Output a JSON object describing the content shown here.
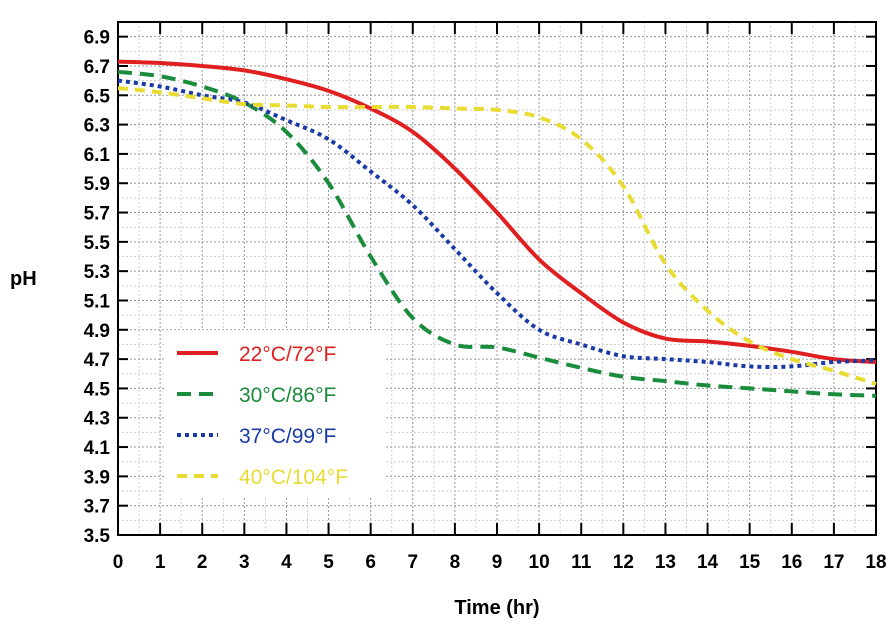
{
  "chart_data": {
    "type": "line",
    "xlabel": "Time (hr)",
    "ylabel": "pH",
    "xlim": [
      0,
      18
    ],
    "ylim": [
      3.5,
      7.0
    ],
    "x_ticks": [
      "0",
      "1",
      "2",
      "3",
      "4",
      "5",
      "6",
      "7",
      "8",
      "9",
      "10",
      "11",
      "12",
      "13",
      "14",
      "15",
      "16",
      "17",
      "18"
    ],
    "y_ticks": [
      "3.5",
      "3.7",
      "3.9",
      "4.1",
      "4.3",
      "4.5",
      "4.7",
      "4.9",
      "5.1",
      "5.3",
      "5.5",
      "5.7",
      "5.9",
      "6.1",
      "6.3",
      "6.5",
      "6.7",
      "6.9"
    ],
    "grid": true,
    "legend_position": "bottom-left",
    "x": [
      0,
      1,
      2,
      3,
      4,
      5,
      6,
      7,
      8,
      9,
      10,
      11,
      12,
      13,
      14,
      15,
      16,
      17,
      18
    ],
    "series": [
      {
        "name": "22°C/72°F",
        "color": "#e02020",
        "style": "solid",
        "values": [
          6.73,
          6.72,
          6.7,
          6.67,
          6.61,
          6.53,
          6.41,
          6.25,
          6.0,
          5.7,
          5.38,
          5.15,
          4.95,
          4.84,
          4.82,
          4.79,
          4.75,
          4.7,
          4.68
        ]
      },
      {
        "name": "30°C/86°F",
        "color": "#1a8c3c",
        "style": "dashed",
        "values": [
          6.66,
          6.63,
          6.56,
          6.45,
          6.25,
          5.9,
          5.4,
          4.98,
          4.8,
          4.78,
          4.71,
          4.64,
          4.58,
          4.55,
          4.52,
          4.5,
          4.48,
          4.46,
          4.45
        ]
      },
      {
        "name": "37°C/99°F",
        "color": "#1a3aa6",
        "style": "dotted",
        "values": [
          6.6,
          6.56,
          6.5,
          6.45,
          6.33,
          6.2,
          5.98,
          5.75,
          5.45,
          5.15,
          4.9,
          4.8,
          4.72,
          4.7,
          4.68,
          4.65,
          4.65,
          4.68,
          4.69
        ]
      },
      {
        "name": "40°C/104°F",
        "color": "#e8dc32",
        "style": "dashed",
        "values": [
          6.55,
          6.52,
          6.48,
          6.44,
          6.43,
          6.42,
          6.42,
          6.42,
          6.41,
          6.4,
          6.35,
          6.2,
          5.88,
          5.35,
          5.03,
          4.82,
          4.7,
          4.62,
          4.53
        ]
      }
    ]
  }
}
